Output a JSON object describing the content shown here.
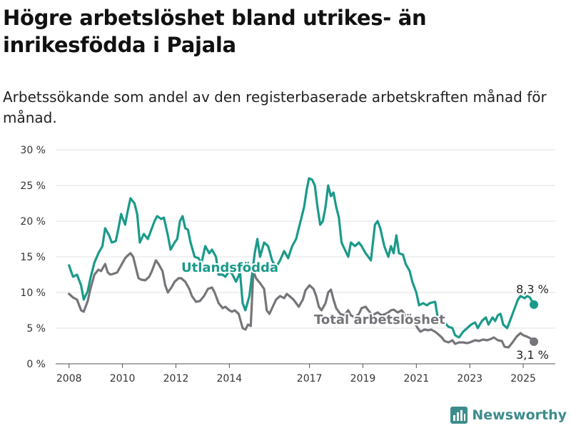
{
  "header": {
    "title": "Högre arbetslöshet bland utrikes- än inrikesfödda i Pajala",
    "subtitle": "Arbetssökande som andel av den registerbaserade arbetskraften månad för månad."
  },
  "brand": {
    "name": "Newsworthy",
    "icon": "bar-chart-logo-icon",
    "color": "#3d8c8c"
  },
  "chart_data": {
    "type": "line",
    "title": "Högre arbetslöshet bland utrikes- än inrikesfödda i Pajala",
    "subtitle": "Arbetssökande som andel av den registerbaserade arbetskraften månad för månad.",
    "xlabel": "",
    "ylabel": "",
    "x_tick_labels": [
      "2008",
      "2010",
      "2012",
      "2014",
      "2017",
      "2019",
      "2021",
      "2023",
      "2025"
    ],
    "y_tick_labels": [
      "0 %",
      "5 %",
      "10 %",
      "15 %",
      "20 %",
      "25 %",
      "30 %"
    ],
    "y_ticks": [
      0,
      5,
      10,
      15,
      20,
      25,
      30
    ],
    "ylim": [
      0,
      30
    ],
    "xlim": [
      2007.5,
      2026.2
    ],
    "grid": true,
    "legend": "direct labels",
    "series": [
      {
        "name": "Utlandsfödda",
        "color": "#1a9a8a",
        "end_label": "8,3 %",
        "points": [
          [
            2008.0,
            13.8
          ],
          [
            2008.15,
            12.2
          ],
          [
            2008.3,
            12.5
          ],
          [
            2008.45,
            11.0
          ],
          [
            2008.55,
            9.0
          ],
          [
            2008.7,
            10.2
          ],
          [
            2008.8,
            12.0
          ],
          [
            2008.95,
            14.2
          ],
          [
            2009.1,
            15.5
          ],
          [
            2009.25,
            16.5
          ],
          [
            2009.35,
            19.0
          ],
          [
            2009.5,
            18.0
          ],
          [
            2009.6,
            17.0
          ],
          [
            2009.75,
            17.2
          ],
          [
            2009.85,
            19.0
          ],
          [
            2009.95,
            21.0
          ],
          [
            2010.1,
            19.5
          ],
          [
            2010.2,
            21.5
          ],
          [
            2010.3,
            23.2
          ],
          [
            2010.45,
            22.5
          ],
          [
            2010.55,
            21.0
          ],
          [
            2010.65,
            17.0
          ],
          [
            2010.8,
            18.2
          ],
          [
            2010.95,
            17.5
          ],
          [
            2011.05,
            18.5
          ],
          [
            2011.2,
            20.0
          ],
          [
            2011.3,
            20.7
          ],
          [
            2011.45,
            20.3
          ],
          [
            2011.55,
            20.5
          ],
          [
            2011.7,
            18.0
          ],
          [
            2011.8,
            16.0
          ],
          [
            2011.95,
            17.0
          ],
          [
            2012.05,
            17.5
          ],
          [
            2012.15,
            20.0
          ],
          [
            2012.25,
            20.7
          ],
          [
            2012.35,
            19.0
          ],
          [
            2012.45,
            18.8
          ],
          [
            2012.55,
            17.0
          ],
          [
            2012.7,
            15.0
          ],
          [
            2012.85,
            14.8
          ],
          [
            2012.95,
            14.0
          ],
          [
            2013.1,
            16.5
          ],
          [
            2013.25,
            15.5
          ],
          [
            2013.35,
            16.0
          ],
          [
            2013.5,
            15.0
          ],
          [
            2013.6,
            12.5
          ],
          [
            2013.75,
            12.5
          ],
          [
            2013.85,
            12.2
          ],
          [
            2014.0,
            13.0
          ],
          [
            2014.1,
            12.6
          ],
          [
            2014.25,
            11.5
          ],
          [
            2014.4,
            12.8
          ],
          [
            2014.5,
            8.5
          ],
          [
            2014.6,
            7.5
          ],
          [
            2014.75,
            9.5
          ],
          [
            2014.85,
            12.5
          ],
          [
            2014.95,
            15.5
          ],
          [
            2015.05,
            17.5
          ],
          [
            2015.15,
            15.0
          ],
          [
            2015.3,
            17.0
          ],
          [
            2015.45,
            16.5
          ],
          [
            2015.6,
            14.5
          ],
          [
            2015.75,
            13.5
          ],
          [
            2015.9,
            14.5
          ],
          [
            2016.05,
            15.8
          ],
          [
            2016.2,
            14.8
          ],
          [
            2016.35,
            16.5
          ],
          [
            2016.5,
            17.5
          ],
          [
            2016.6,
            19.0
          ],
          [
            2016.7,
            20.5
          ],
          [
            2016.8,
            22.0
          ],
          [
            2016.9,
            24.5
          ],
          [
            2016.98,
            26.0
          ],
          [
            2017.1,
            25.8
          ],
          [
            2017.2,
            25.0
          ],
          [
            2017.3,
            22.0
          ],
          [
            2017.4,
            19.5
          ],
          [
            2017.5,
            20.0
          ],
          [
            2017.6,
            22.0
          ],
          [
            2017.7,
            25.0
          ],
          [
            2017.8,
            23.5
          ],
          [
            2017.9,
            24.0
          ],
          [
            2018.0,
            22.0
          ],
          [
            2018.1,
            20.5
          ],
          [
            2018.2,
            17.0
          ],
          [
            2018.35,
            15.8
          ],
          [
            2018.45,
            15.0
          ],
          [
            2018.55,
            17.0
          ],
          [
            2018.7,
            16.5
          ],
          [
            2018.85,
            17.0
          ],
          [
            2018.95,
            16.5
          ],
          [
            2019.1,
            15.5
          ],
          [
            2019.2,
            15.0
          ],
          [
            2019.3,
            14.5
          ],
          [
            2019.45,
            19.5
          ],
          [
            2019.55,
            20.0
          ],
          [
            2019.65,
            19.0
          ],
          [
            2019.8,
            16.5
          ],
          [
            2019.95,
            15.0
          ],
          [
            2020.05,
            16.5
          ],
          [
            2020.15,
            15.5
          ],
          [
            2020.25,
            18.0
          ],
          [
            2020.35,
            15.5
          ],
          [
            2020.5,
            15.3
          ],
          [
            2020.6,
            14.0
          ],
          [
            2020.75,
            13.0
          ],
          [
            2020.85,
            11.5
          ],
          [
            2021.0,
            10.0
          ],
          [
            2021.1,
            8.2
          ],
          [
            2021.25,
            8.5
          ],
          [
            2021.4,
            8.2
          ],
          [
            2021.5,
            8.5
          ],
          [
            2021.7,
            8.7
          ],
          [
            2021.8,
            6.5
          ],
          [
            2021.95,
            6.2
          ],
          [
            2022.05,
            5.8
          ],
          [
            2022.2,
            5.2
          ],
          [
            2022.35,
            5.0
          ],
          [
            2022.45,
            4.0
          ],
          [
            2022.6,
            3.7
          ],
          [
            2022.75,
            4.5
          ],
          [
            2022.9,
            5.0
          ],
          [
            2023.05,
            5.5
          ],
          [
            2023.2,
            5.8
          ],
          [
            2023.3,
            5.0
          ],
          [
            2023.45,
            6.0
          ],
          [
            2023.6,
            6.5
          ],
          [
            2023.7,
            5.5
          ],
          [
            2023.85,
            6.5
          ],
          [
            2023.95,
            6.0
          ],
          [
            2024.05,
            6.8
          ],
          [
            2024.15,
            7.0
          ],
          [
            2024.25,
            5.5
          ],
          [
            2024.4,
            5.0
          ],
          [
            2024.5,
            6.0
          ],
          [
            2024.65,
            7.5
          ],
          [
            2024.8,
            9.0
          ],
          [
            2024.9,
            9.5
          ],
          [
            2025.05,
            9.2
          ],
          [
            2025.15,
            9.5
          ],
          [
            2025.25,
            9.3
          ],
          [
            2025.4,
            8.3
          ]
        ]
      },
      {
        "name": "Total arbetslöshet",
        "color": "#75757a",
        "end_label": "3,1 %",
        "points": [
          [
            2008.0,
            9.8
          ],
          [
            2008.15,
            9.3
          ],
          [
            2008.3,
            9.0
          ],
          [
            2008.45,
            7.5
          ],
          [
            2008.55,
            7.3
          ],
          [
            2008.7,
            8.8
          ],
          [
            2008.8,
            10.5
          ],
          [
            2008.95,
            12.5
          ],
          [
            2009.1,
            13.2
          ],
          [
            2009.2,
            13.0
          ],
          [
            2009.35,
            14.0
          ],
          [
            2009.45,
            12.8
          ],
          [
            2009.55,
            12.5
          ],
          [
            2009.65,
            12.6
          ],
          [
            2009.8,
            12.8
          ],
          [
            2009.95,
            13.8
          ],
          [
            2010.1,
            14.8
          ],
          [
            2010.2,
            15.2
          ],
          [
            2010.3,
            15.5
          ],
          [
            2010.4,
            15.0
          ],
          [
            2010.5,
            13.5
          ],
          [
            2010.6,
            12.0
          ],
          [
            2010.7,
            11.8
          ],
          [
            2010.85,
            11.7
          ],
          [
            2011.0,
            12.2
          ],
          [
            2011.1,
            13.0
          ],
          [
            2011.25,
            14.5
          ],
          [
            2011.35,
            14.0
          ],
          [
            2011.5,
            13.0
          ],
          [
            2011.6,
            11.0
          ],
          [
            2011.7,
            10.0
          ],
          [
            2011.85,
            10.8
          ],
          [
            2011.95,
            11.5
          ],
          [
            2012.1,
            12.0
          ],
          [
            2012.2,
            12.0
          ],
          [
            2012.35,
            11.5
          ],
          [
            2012.5,
            10.5
          ],
          [
            2012.6,
            9.5
          ],
          [
            2012.75,
            8.7
          ],
          [
            2012.9,
            8.8
          ],
          [
            2013.05,
            9.5
          ],
          [
            2013.2,
            10.5
          ],
          [
            2013.35,
            10.7
          ],
          [
            2013.45,
            10.0
          ],
          [
            2013.6,
            8.5
          ],
          [
            2013.75,
            7.8
          ],
          [
            2013.85,
            8.0
          ],
          [
            2014.0,
            7.5
          ],
          [
            2014.1,
            7.3
          ],
          [
            2014.2,
            7.5
          ],
          [
            2014.35,
            7.0
          ],
          [
            2014.5,
            5.0
          ],
          [
            2014.6,
            4.8
          ],
          [
            2014.7,
            5.5
          ],
          [
            2014.8,
            5.3
          ],
          [
            2014.9,
            13.0
          ],
          [
            2015.0,
            12.0
          ],
          [
            2015.15,
            11.3
          ],
          [
            2015.3,
            10.5
          ],
          [
            2015.4,
            7.5
          ],
          [
            2015.5,
            7.0
          ],
          [
            2015.6,
            7.8
          ],
          [
            2015.75,
            9.0
          ],
          [
            2015.9,
            9.5
          ],
          [
            2016.05,
            9.2
          ],
          [
            2016.15,
            9.8
          ],
          [
            2016.25,
            9.5
          ],
          [
            2016.4,
            9.0
          ],
          [
            2016.5,
            8.5
          ],
          [
            2016.6,
            8.0
          ],
          [
            2016.75,
            9.0
          ],
          [
            2016.85,
            10.3
          ],
          [
            2017.0,
            11.0
          ],
          [
            2017.15,
            10.5
          ],
          [
            2017.25,
            9.5
          ],
          [
            2017.35,
            8.0
          ],
          [
            2017.45,
            7.5
          ],
          [
            2017.6,
            8.5
          ],
          [
            2017.7,
            10.0
          ],
          [
            2017.8,
            10.4
          ],
          [
            2017.9,
            9.0
          ],
          [
            2018.0,
            7.8
          ],
          [
            2018.15,
            7.0
          ],
          [
            2018.3,
            6.8
          ],
          [
            2018.45,
            7.5
          ],
          [
            2018.55,
            6.8
          ],
          [
            2018.7,
            6.5
          ],
          [
            2018.85,
            7.0
          ],
          [
            2018.95,
            7.8
          ],
          [
            2019.1,
            8.0
          ],
          [
            2019.2,
            7.5
          ],
          [
            2019.35,
            6.8
          ],
          [
            2019.45,
            7.0
          ],
          [
            2019.55,
            7.2
          ],
          [
            2019.7,
            6.8
          ],
          [
            2019.85,
            7.0
          ],
          [
            2019.95,
            7.2
          ],
          [
            2020.05,
            7.5
          ],
          [
            2020.15,
            7.6
          ],
          [
            2020.3,
            7.2
          ],
          [
            2020.45,
            7.5
          ],
          [
            2020.55,
            7.0
          ],
          [
            2020.65,
            6.5
          ],
          [
            2020.8,
            6.3
          ],
          [
            2020.9,
            6.0
          ],
          [
            2021.05,
            5.0
          ],
          [
            2021.15,
            4.5
          ],
          [
            2021.3,
            4.8
          ],
          [
            2021.45,
            4.7
          ],
          [
            2021.55,
            4.8
          ],
          [
            2021.7,
            4.5
          ],
          [
            2021.8,
            4.2
          ],
          [
            2021.95,
            3.7
          ],
          [
            2022.05,
            3.2
          ],
          [
            2022.2,
            3.0
          ],
          [
            2022.35,
            3.3
          ],
          [
            2022.45,
            2.8
          ],
          [
            2022.6,
            3.0
          ],
          [
            2022.75,
            3.0
          ],
          [
            2022.9,
            2.9
          ],
          [
            2023.0,
            3.0
          ],
          [
            2023.2,
            3.3
          ],
          [
            2023.35,
            3.2
          ],
          [
            2023.5,
            3.4
          ],
          [
            2023.65,
            3.3
          ],
          [
            2023.8,
            3.5
          ],
          [
            2023.9,
            3.7
          ],
          [
            2024.05,
            3.3
          ],
          [
            2024.2,
            3.2
          ],
          [
            2024.3,
            2.4
          ],
          [
            2024.45,
            2.3
          ],
          [
            2024.6,
            3.0
          ],
          [
            2024.75,
            3.8
          ],
          [
            2024.9,
            4.3
          ],
          [
            2025.0,
            4.0
          ],
          [
            2025.15,
            3.8
          ],
          [
            2025.3,
            3.5
          ],
          [
            2025.4,
            3.1
          ]
        ]
      }
    ]
  }
}
